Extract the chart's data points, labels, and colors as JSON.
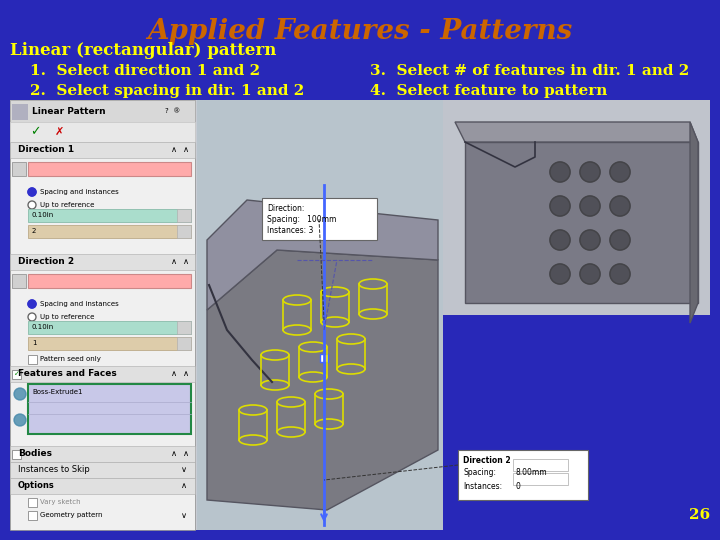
{
  "background_color": "#2828b8",
  "title": "Applied Features - Patterns",
  "title_color": "#cc6600",
  "title_fontsize": 20,
  "subtitle": "Linear (rectangular) pattern",
  "subtitle_color": "#ffff00",
  "subtitle_fontsize": 12,
  "items": [
    {
      "num": "1.",
      "text": "Select direction 1 and 2",
      "col": 0
    },
    {
      "num": "2.",
      "text": "Select spacing in dir. 1 and 2",
      "col": 0
    },
    {
      "num": "3.",
      "text": "Select # of features in dir. 1 and 2",
      "col": 1
    },
    {
      "num": "4.",
      "text": "Select feature to pattern",
      "col": 1
    }
  ],
  "item_color": "#ffff00",
  "item_fontsize": 11,
  "slide_number": "26",
  "slide_num_color": "#ffff00",
  "slide_num_fontsize": 11
}
